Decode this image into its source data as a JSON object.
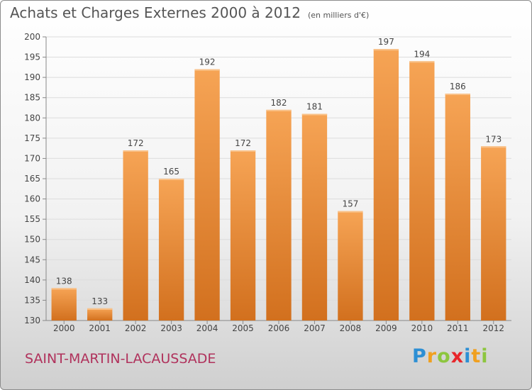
{
  "title": "Achats et Charges Externes 2000 à 2012",
  "unit_note": "(en milliers d'€)",
  "commune": "SAINT-MARTIN-LACAUSSADE",
  "brand": {
    "text": "Proxiti",
    "letters": [
      {
        "ch": "P",
        "color": "#2d8fd4"
      },
      {
        "ch": "r",
        "color": "#f0a020"
      },
      {
        "ch": "o",
        "color": "#8dc63f"
      },
      {
        "ch": "x",
        "color": "#e8262b"
      },
      {
        "ch": "i",
        "color": "#2d8fd4"
      },
      {
        "ch": "t",
        "color": "#f0a020"
      },
      {
        "ch": "i",
        "color": "#8dc63f"
      }
    ]
  },
  "colors": {
    "bar_light": "#f6a455",
    "bar_dark": "#d2701e",
    "commune": "#b0325c"
  },
  "chart_data": {
    "type": "bar",
    "categories": [
      "2000",
      "2001",
      "2002",
      "2003",
      "2004",
      "2005",
      "2006",
      "2007",
      "2008",
      "2009",
      "2010",
      "2011",
      "2012"
    ],
    "values": [
      138,
      133,
      172,
      165,
      192,
      172,
      182,
      181,
      157,
      197,
      194,
      186,
      173
    ],
    "ylim": [
      130,
      200
    ],
    "yticks": [
      130,
      135,
      140,
      145,
      150,
      155,
      160,
      165,
      170,
      175,
      180,
      185,
      190,
      195,
      200
    ],
    "grid": true,
    "title": "Achats et Charges Externes 2000 à 2012",
    "xlabel": "",
    "ylabel": ""
  }
}
